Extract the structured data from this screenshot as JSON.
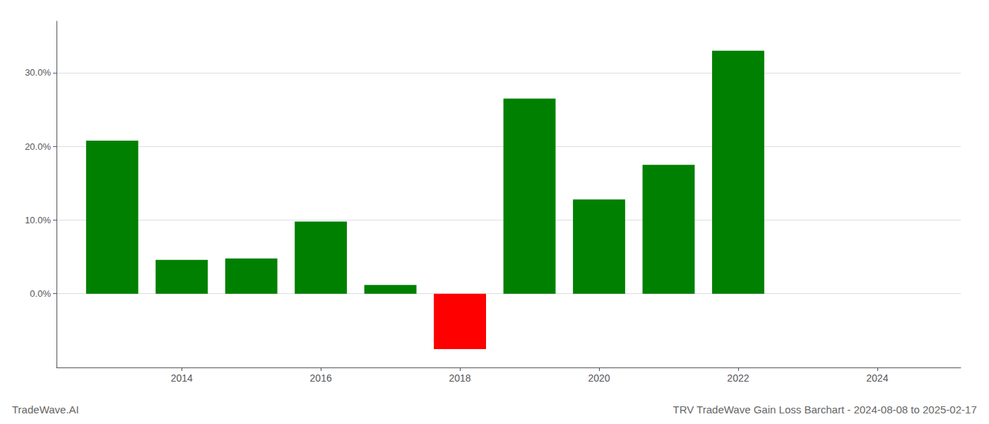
{
  "chart_data": {
    "type": "bar",
    "title": "TRV TradeWave Gain Loss Barchart - 2024-08-08 to 2025-02-17",
    "annotations": [
      "TradeWave.AI"
    ],
    "x": [
      2013,
      2014,
      2015,
      2016,
      2017,
      2018,
      2019,
      2020,
      2021,
      2022
    ],
    "values": [
      0.208,
      0.046,
      0.048,
      0.098,
      0.012,
      -0.075,
      0.265,
      0.128,
      0.175,
      0.33
    ],
    "colors": [
      "#008000",
      "#008000",
      "#008000",
      "#008000",
      "#008000",
      "#ff0000",
      "#008000",
      "#008000",
      "#008000",
      "#008000"
    ],
    "xlim": [
      2012.2,
      2025.2
    ],
    "xticks": [
      2014,
      2016,
      2018,
      2020,
      2022,
      2024
    ],
    "ylim": [
      -0.1,
      0.37
    ],
    "yticks": [
      {
        "value": 0.0,
        "label": "0.0%"
      },
      {
        "value": 0.1,
        "label": "10.0%"
      },
      {
        "value": 0.2,
        "label": "20.0%"
      },
      {
        "value": 0.3,
        "label": "30.0%"
      }
    ],
    "grid": true
  }
}
